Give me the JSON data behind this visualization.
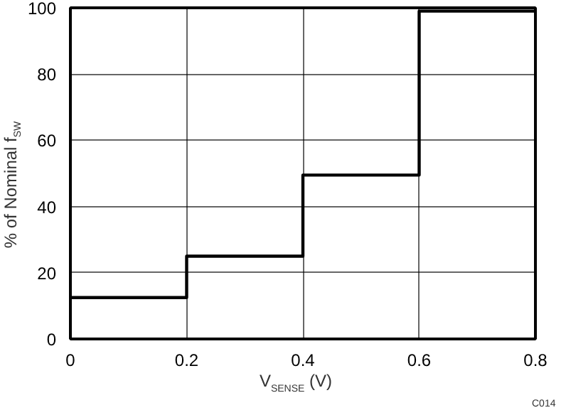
{
  "chart_data": {
    "type": "step",
    "xlabel": "V$_{SENSE}$ (V)",
    "ylabel": "% of Nominal f$_{SW}$",
    "x": [
      0,
      0.2,
      0.4,
      0.6,
      0.8
    ],
    "series": [
      {
        "color": "#000000",
        "values": [
          12.5,
          25,
          49.5,
          99,
          99
        ]
      }
    ],
    "xlim": [
      0,
      0.8
    ],
    "ylim": [
      0,
      100
    ],
    "xticks": [
      0,
      0.2,
      0.4,
      0.6,
      0.8
    ],
    "yticks": [
      0,
      20,
      40,
      60,
      80,
      100
    ],
    "grid": true,
    "line_style": "solid",
    "annotations": [
      "C014"
    ]
  }
}
